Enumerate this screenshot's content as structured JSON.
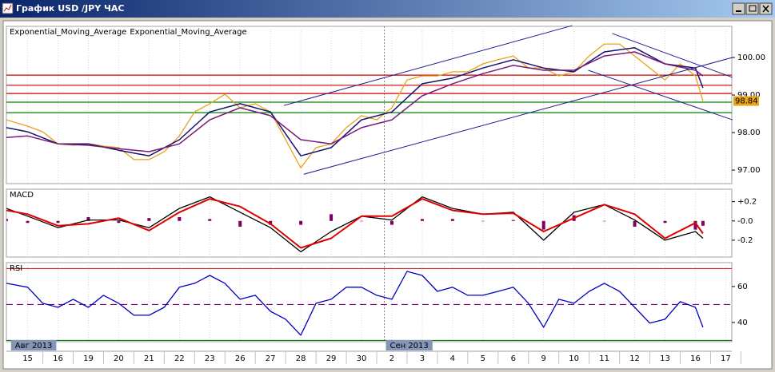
{
  "window": {
    "title": "График USD /JPY ЧАС"
  },
  "chart_data": [
    {
      "type": "line",
      "xlim": [
        -0.7,
        23.2
      ],
      "ylim": [
        96.64,
        100.83
      ],
      "yticks": [
        {
          "value": 97,
          "label": "97.00"
        },
        {
          "value": 98,
          "label": "98.00"
        },
        {
          "value": 99,
          "label": "99.00"
        },
        {
          "value": 100,
          "label": "100.00"
        }
      ],
      "series": [
        {
          "color": "#e8a317",
          "show_last": true,
          "x": [
            -0.7,
            0,
            0.5,
            1,
            1.5,
            2,
            2.5,
            3,
            3.5,
            4,
            4.5,
            5,
            5.5,
            6,
            6.5,
            7,
            7.5,
            8,
            8.5,
            9,
            9.5,
            10,
            10.5,
            11,
            11.5,
            12,
            12.5,
            13,
            13.5,
            14,
            14.5,
            15,
            15.5,
            16,
            16.5,
            17,
            17.5,
            18,
            18.5,
            19,
            19.5,
            20,
            20.5,
            21,
            21.5,
            22,
            22.25
          ],
          "values": [
            98.34,
            98.17,
            98.02,
            97.7,
            97.66,
            97.7,
            97.64,
            97.6,
            97.28,
            97.28,
            97.49,
            97.91,
            98.55,
            98.77,
            99.02,
            98.66,
            98.77,
            98.55,
            97.81,
            97.06,
            97.6,
            97.7,
            98.13,
            98.45,
            98.34,
            98.66,
            99.4,
            99.51,
            99.51,
            99.62,
            99.62,
            99.83,
            99.94,
            100.04,
            99.72,
            99.72,
            99.51,
            99.62,
            100.04,
            100.36,
            100.36,
            100.04,
            99.72,
            99.4,
            99.83,
            99.51,
            98.84
          ]
        },
        {
          "name": "Exponential_Moving_Average",
          "color": "#14146e",
          "x": [
            -0.7,
            0,
            1,
            2,
            3,
            4,
            5,
            6,
            7,
            8,
            9,
            10,
            11,
            12,
            13,
            14,
            15,
            16,
            17,
            18,
            19,
            20,
            21,
            22,
            22.25
          ],
          "values": [
            98.13,
            98.02,
            97.7,
            97.7,
            97.53,
            97.38,
            97.81,
            98.55,
            98.77,
            98.55,
            97.38,
            97.6,
            98.34,
            98.55,
            99.3,
            99.45,
            99.72,
            99.94,
            99.72,
            99.62,
            100.15,
            100.26,
            99.83,
            99.72,
            99.19
          ]
        },
        {
          "name": "Exponential_Moving_Average",
          "color": "#7a1a7a",
          "x": [
            -0.7,
            0,
            1,
            2,
            3,
            4,
            5,
            6,
            7,
            8,
            9,
            10,
            11,
            12,
            13,
            14,
            15,
            16,
            17,
            18,
            19,
            20,
            21,
            22,
            22.25
          ],
          "values": [
            97.87,
            97.91,
            97.7,
            97.66,
            97.57,
            97.49,
            97.7,
            98.34,
            98.66,
            98.45,
            97.81,
            97.7,
            98.13,
            98.34,
            98.98,
            99.3,
            99.57,
            99.79,
            99.66,
            99.66,
            100.04,
            100.15,
            99.83,
            99.66,
            99.51
          ]
        }
      ],
      "hlines": [
        {
          "value": 99.53,
          "color": "#cc0000"
        },
        {
          "value": 99.26,
          "color": "#cc0000"
        },
        {
          "value": 99.04,
          "color": "#cc0000"
        },
        {
          "value": 98.81,
          "color": "#008000"
        },
        {
          "value": 98.53,
          "color": "#008000"
        }
      ],
      "trendlines": [
        {
          "x": [
            8.44,
            17.94
          ],
          "y": [
            98.72,
            100.85
          ],
          "color": "#1c1c90"
        },
        {
          "x": [
            9.1,
            23.22
          ],
          "y": [
            96.89,
            100.0
          ],
          "color": "#1c1c90"
        },
        {
          "x": [
            19.26,
            23.22
          ],
          "y": [
            100.64,
            99.47
          ],
          "color": "#1c1c90"
        },
        {
          "x": [
            18.47,
            23.22
          ],
          "y": [
            99.66,
            98.34
          ],
          "color": "#1c1c90"
        }
      ]
    },
    {
      "type": "line",
      "title": "MACD",
      "xlim": [
        -0.7,
        23.2
      ],
      "ylim": [
        -0.375,
        0.33
      ],
      "yticks": [
        {
          "value": 0.2,
          "label": "+0.2"
        },
        {
          "value": 0,
          "label": "-0.0"
        },
        {
          "value": -0.2,
          "label": "-0.2"
        }
      ],
      "series": [
        {
          "type": "bar",
          "color": "#800060",
          "x": [
            -0.7,
            0,
            1,
            2,
            3,
            4,
            5,
            6,
            7,
            8,
            9,
            10,
            11,
            12,
            13,
            14,
            15,
            16,
            17,
            18,
            19,
            20,
            21,
            22,
            22.25
          ],
          "values": [
            0.02,
            -0.02,
            -0.02,
            0.04,
            -0.02,
            0.03,
            0.04,
            0.02,
            -0.06,
            -0.04,
            -0.04,
            0.07,
            0,
            -0.04,
            0.02,
            0.02,
            0,
            0.01,
            -0.09,
            0.06,
            0,
            -0.06,
            -0.02,
            -0.09,
            -0.05
          ]
        },
        {
          "color": "#000000",
          "x": [
            -0.7,
            0,
            1,
            2,
            3,
            4,
            5,
            6,
            7,
            8,
            9,
            10,
            11,
            12,
            13,
            14,
            15,
            16,
            17,
            18,
            19,
            20,
            21,
            22,
            22.25
          ],
          "values": [
            0.13,
            0.05,
            -0.07,
            0.01,
            0.01,
            -0.07,
            0.13,
            0.25,
            0.09,
            -0.07,
            -0.32,
            -0.11,
            0.05,
            0.01,
            0.25,
            0.13,
            0.07,
            0.09,
            -0.2,
            0.09,
            0.17,
            0.01,
            -0.2,
            -0.11,
            -0.18
          ]
        },
        {
          "color": "#e00000",
          "width": 2,
          "x": [
            -0.7,
            0,
            1,
            2,
            3,
            4,
            5,
            6,
            7,
            8,
            9,
            10,
            11,
            12,
            13,
            14,
            15,
            16,
            17,
            18,
            19,
            20,
            21,
            22,
            22.25
          ],
          "values": [
            0.11,
            0.07,
            -0.05,
            -0.03,
            0.03,
            -0.1,
            0.09,
            0.23,
            0.15,
            -0.03,
            -0.28,
            -0.18,
            0.05,
            0.05,
            0.23,
            0.11,
            0.07,
            0.08,
            -0.11,
            0.03,
            0.17,
            0.07,
            -0.18,
            -0.02,
            -0.13
          ]
        }
      ]
    },
    {
      "type": "line",
      "title": "RSI",
      "xlim": [
        -0.7,
        23.2
      ],
      "ylim": [
        29.3,
        73.3
      ],
      "yticks": [
        60,
        40
      ],
      "xticks": [
        {
          "value": 0,
          "label": "15"
        },
        {
          "value": 1,
          "label": "16"
        },
        {
          "value": 2,
          "label": "19"
        },
        {
          "value": 3,
          "label": "20"
        },
        {
          "value": 4,
          "label": "21"
        },
        {
          "value": 5,
          "label": "22"
        },
        {
          "value": 6,
          "label": "23"
        },
        {
          "value": 7,
          "label": "26"
        },
        {
          "value": 8,
          "label": "27"
        },
        {
          "value": 9,
          "label": "28"
        },
        {
          "value": 10,
          "label": "29"
        },
        {
          "value": 11,
          "label": "30"
        },
        {
          "value": 12,
          "label": "2"
        },
        {
          "value": 13,
          "label": "3"
        },
        {
          "value": 14,
          "label": "4"
        },
        {
          "value": 15,
          "label": "5"
        },
        {
          "value": 16,
          "label": "6"
        },
        {
          "value": 17,
          "label": "9"
        },
        {
          "value": 18,
          "label": "10"
        },
        {
          "value": 19,
          "label": "11"
        },
        {
          "value": 20,
          "label": "12"
        },
        {
          "value": 21,
          "label": "13"
        },
        {
          "value": 22,
          "label": "16"
        },
        {
          "value": 23,
          "label": "17"
        }
      ],
      "x_period_labels": [
        {
          "value": -0.6,
          "label": "Авг 2013"
        },
        {
          "value": 11.75,
          "label": "Сен 2013"
        }
      ],
      "hlines": [
        {
          "value": 70,
          "color": "#e02020"
        },
        {
          "value": 50,
          "color": "#800080",
          "dash": true
        },
        {
          "value": 30,
          "color": "#008000"
        }
      ],
      "series": [
        {
          "color": "#0000c0",
          "x": [
            -0.7,
            0,
            0.5,
            1,
            1.5,
            2,
            2.5,
            3,
            3.5,
            4,
            4.5,
            5,
            5.5,
            6,
            6.5,
            7,
            7.5,
            8,
            8.5,
            9,
            9.5,
            10,
            10.5,
            11,
            11.5,
            12,
            12.5,
            13,
            13.5,
            14,
            14.5,
            15,
            15.5,
            16,
            16.5,
            17,
            17.5,
            18,
            18.5,
            19,
            19.5,
            20,
            20.5,
            21,
            21.5,
            22,
            22.25
          ],
          "values": [
            61.8,
            59.6,
            50.7,
            48.4,
            52.9,
            48.4,
            55.1,
            50.7,
            44.0,
            44.0,
            48.4,
            59.6,
            61.8,
            66.2,
            61.8,
            52.9,
            55.1,
            46.2,
            41.8,
            32.9,
            50.7,
            52.9,
            59.6,
            59.6,
            55.1,
            52.9,
            68.4,
            66.2,
            57.3,
            59.6,
            55.1,
            55.1,
            57.3,
            59.6,
            50.7,
            37.3,
            52.9,
            50.7,
            57.3,
            61.8,
            57.3,
            48.4,
            39.6,
            41.8,
            51.6,
            48.4,
            37.3
          ]
        }
      ]
    }
  ]
}
